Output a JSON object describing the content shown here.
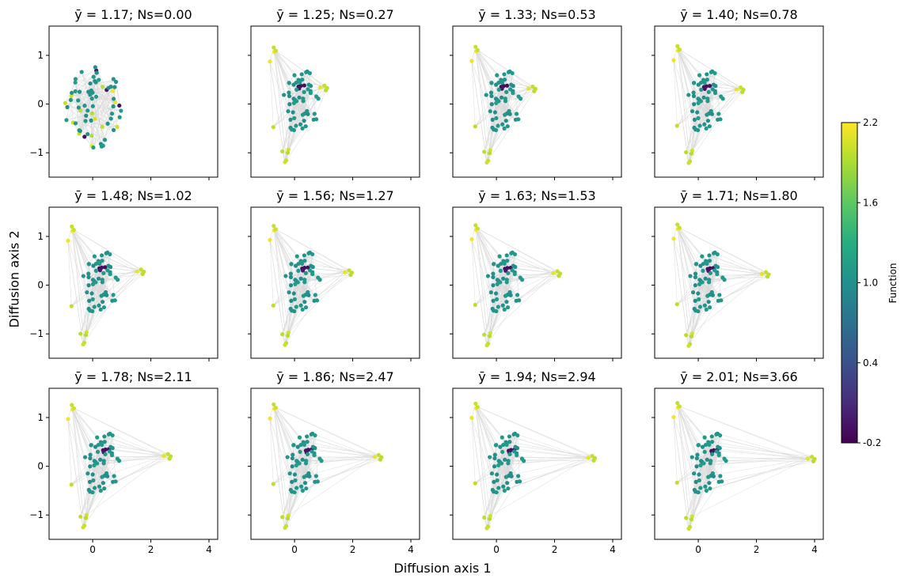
{
  "figure": {
    "xlabel": "Diffusion axis 1",
    "ylabel": "Diffusion axis 2"
  },
  "colorbar": {
    "label": "Function",
    "ticks": [
      "2.2",
      "1.6",
      "1.0",
      "0.4",
      "-0.2"
    ],
    "range": [
      -0.2,
      2.2
    ],
    "colormap": "viridis"
  },
  "chart_data": {
    "type": "scatter",
    "grid": false,
    "xlim": [
      -1.5,
      4.3
    ],
    "ylim": [
      -1.5,
      1.6
    ],
    "xticks": [
      0,
      2,
      4
    ],
    "yticks": [
      -1,
      0,
      1
    ],
    "node_count": 70,
    "edge_color": "#d9d9d9",
    "panels": [
      {
        "title": "ȳ = 1.17; Ns=0.00",
        "ybar": 1.17,
        "ns": 0.0
      },
      {
        "title": "ȳ = 1.25; Ns=0.27",
        "ybar": 1.25,
        "ns": 0.27
      },
      {
        "title": "ȳ = 1.33; Ns=0.53",
        "ybar": 1.33,
        "ns": 0.53
      },
      {
        "title": "ȳ = 1.40; Ns=0.78",
        "ybar": 1.4,
        "ns": 0.78
      },
      {
        "title": "ȳ = 1.48; Ns=1.02",
        "ybar": 1.48,
        "ns": 1.02
      },
      {
        "title": "ȳ = 1.56; Ns=1.27",
        "ybar": 1.56,
        "ns": 1.27
      },
      {
        "title": "ȳ = 1.63; Ns=1.53",
        "ybar": 1.63,
        "ns": 1.53
      },
      {
        "title": "ȳ = 1.71; Ns=1.80",
        "ybar": 1.71,
        "ns": 1.8
      },
      {
        "title": "ȳ = 1.78; Ns=2.11",
        "ybar": 1.78,
        "ns": 2.11
      },
      {
        "title": "ȳ = 1.86; Ns=2.47",
        "ybar": 1.86,
        "ns": 2.47
      },
      {
        "title": "ȳ = 1.94; Ns=2.94",
        "ybar": 1.94,
        "ns": 2.94
      },
      {
        "title": "ȳ = 2.01; Ns=3.66",
        "ybar": 2.01,
        "ns": 3.66
      }
    ]
  }
}
